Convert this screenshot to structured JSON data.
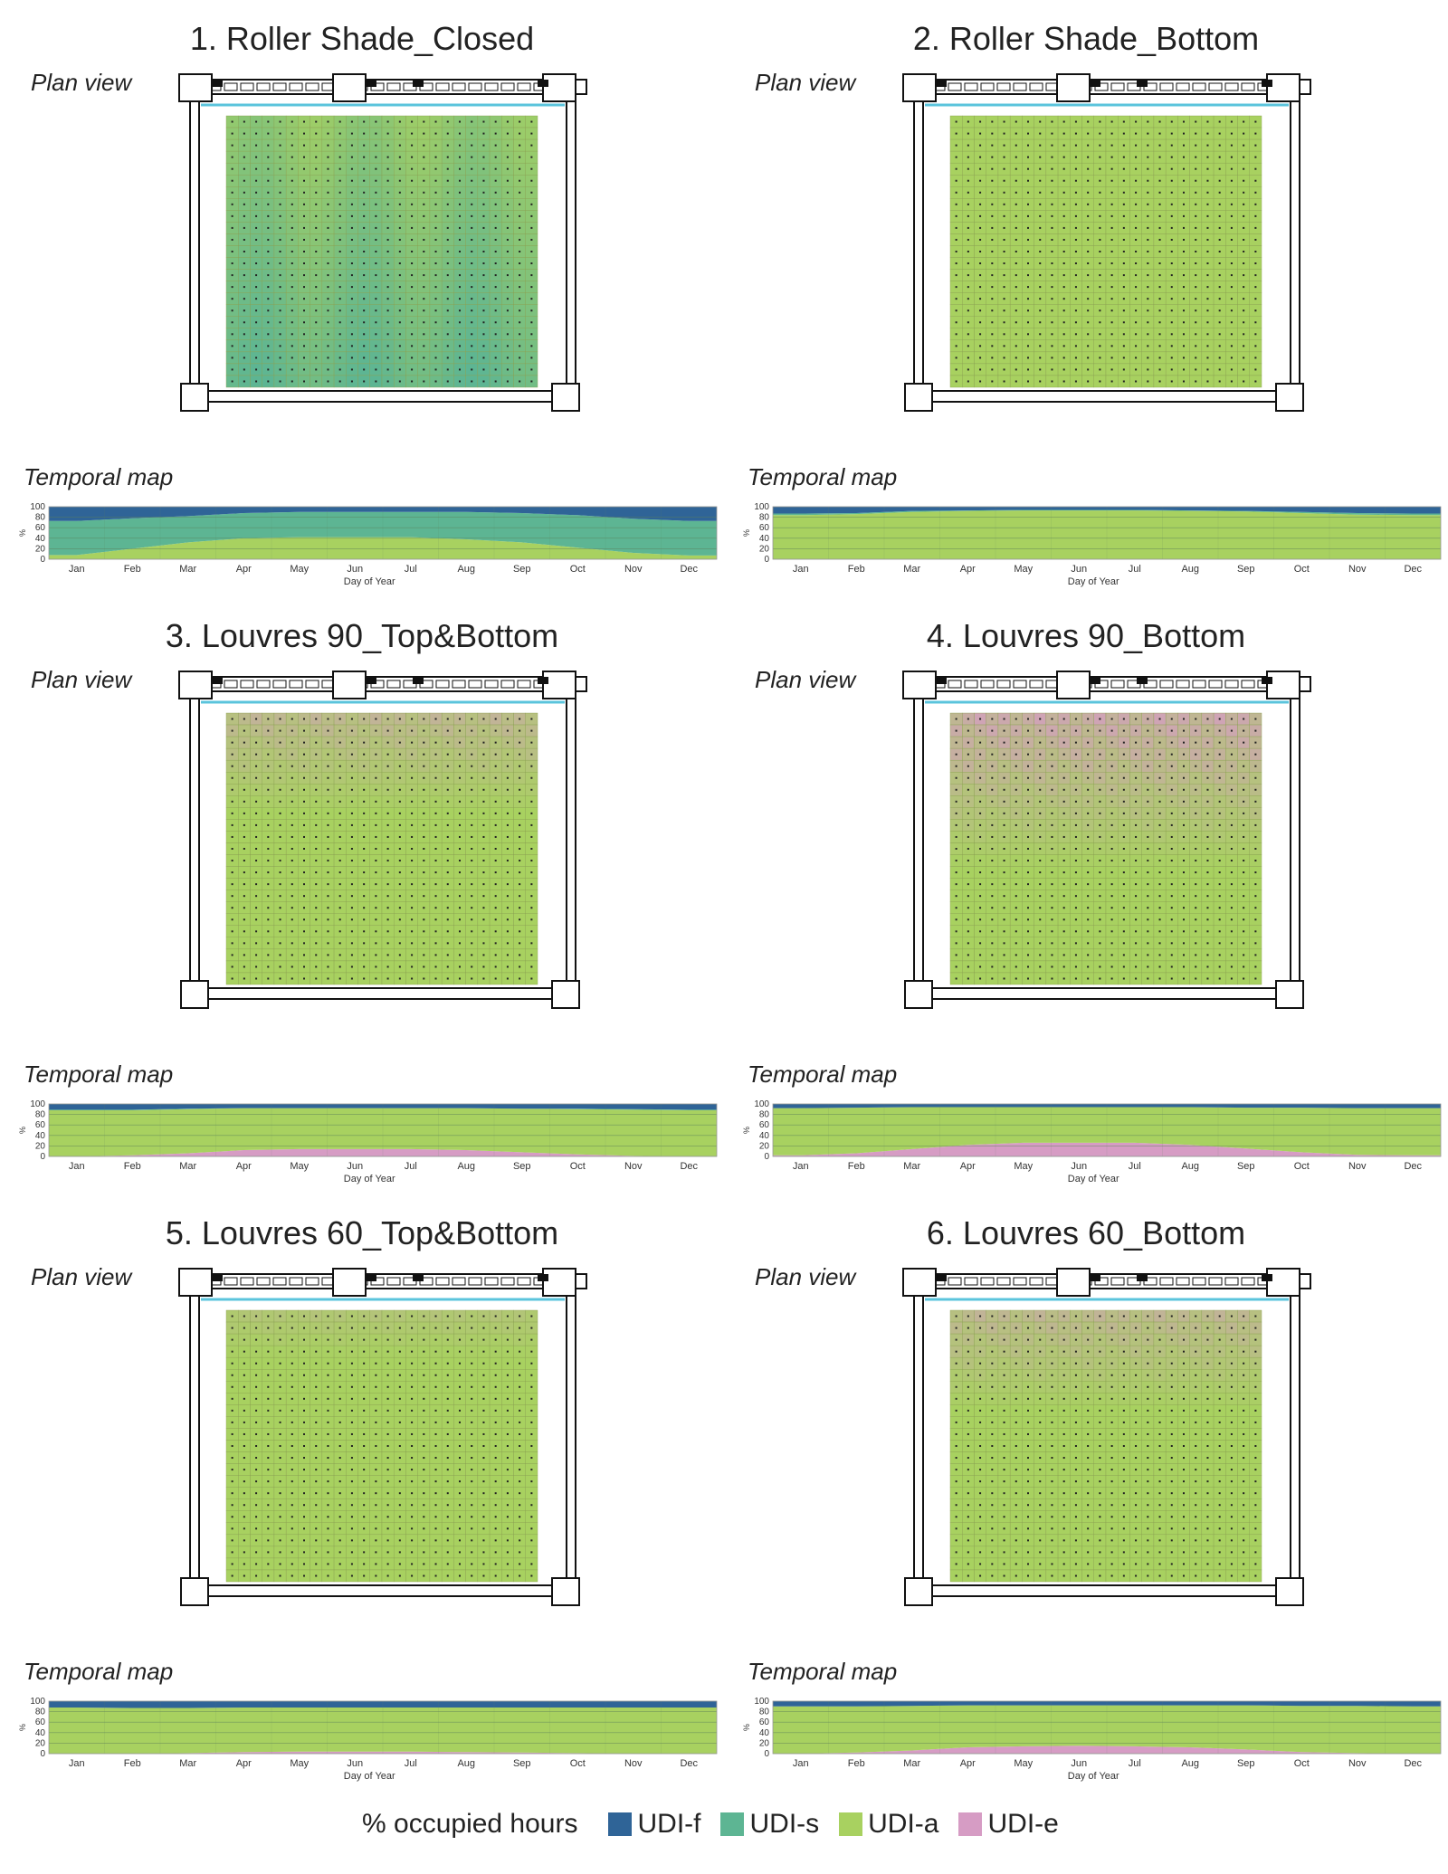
{
  "plan_label": "Plan view",
  "temporal_label": "Temporal map",
  "colors": {
    "udi_f": "#2f6497",
    "udi_s": "#5db593",
    "udi_a": "#a8d160",
    "udi_e": "#d69cc4",
    "glazing": "#5bc4dc"
  },
  "legend": {
    "title": "% occupied hours",
    "items": [
      {
        "label": "UDI-f",
        "color": "#2f6497"
      },
      {
        "label": "UDI-s",
        "color": "#5db593"
      },
      {
        "label": "UDI-a",
        "color": "#a8d160"
      },
      {
        "label": "UDI-e",
        "color": "#d69cc4"
      }
    ]
  },
  "chart_data": [
    {
      "type": "area",
      "title": "1. Roller Shade_Closed",
      "plan_view": "udi-s",
      "xlabel": "Day of Year",
      "ylabel": "%",
      "ylim": [
        0,
        100
      ],
      "yticks": [
        "100",
        "80",
        "60",
        "40",
        "20",
        "0"
      ],
      "categories": [
        "Jan",
        "Feb",
        "Mar",
        "Apr",
        "May",
        "Jun",
        "Jul",
        "Aug",
        "Sep",
        "Oct",
        "Nov",
        "Dec"
      ],
      "series": [
        {
          "name": "UDI-e",
          "values": [
            0,
            0,
            0,
            0,
            0,
            0,
            0,
            0,
            0,
            0,
            0,
            0
          ]
        },
        {
          "name": "UDI-a",
          "values": [
            8,
            20,
            32,
            40,
            42,
            42,
            42,
            38,
            32,
            22,
            12,
            7
          ]
        },
        {
          "name": "UDI-s",
          "values": [
            65,
            58,
            50,
            48,
            48,
            48,
            48,
            52,
            56,
            62,
            65,
            66
          ]
        },
        {
          "name": "UDI-f",
          "values": [
            27,
            22,
            18,
            12,
            10,
            10,
            10,
            10,
            12,
            16,
            23,
            27
          ]
        }
      ]
    },
    {
      "type": "area",
      "title": "2. Roller Shade_Bottom",
      "plan_view": "udi-a",
      "xlabel": "Day of Year",
      "ylabel": "%",
      "ylim": [
        0,
        100
      ],
      "yticks": [
        "100",
        "80",
        "60",
        "40",
        "20",
        "0"
      ],
      "categories": [
        "Jan",
        "Feb",
        "Mar",
        "Apr",
        "May",
        "Jun",
        "Jul",
        "Aug",
        "Sep",
        "Oct",
        "Nov",
        "Dec"
      ],
      "series": [
        {
          "name": "UDI-e",
          "values": [
            0,
            0,
            0,
            0,
            0,
            0,
            0,
            0,
            0,
            0,
            0,
            0
          ]
        },
        {
          "name": "UDI-a",
          "values": [
            84,
            86,
            90,
            92,
            93,
            93,
            93,
            92,
            91,
            88,
            85,
            84
          ]
        },
        {
          "name": "UDI-s",
          "values": [
            3,
            2,
            2,
            1,
            1,
            1,
            1,
            1,
            1,
            2,
            3,
            3
          ]
        },
        {
          "name": "UDI-f",
          "values": [
            13,
            12,
            8,
            7,
            6,
            6,
            6,
            7,
            8,
            10,
            12,
            13
          ]
        }
      ]
    },
    {
      "type": "area",
      "title": "3. Louvres 90_Top&Bottom",
      "plan_view": "udi-a-pink-top",
      "xlabel": "Day of Year",
      "ylabel": "%",
      "ylim": [
        0,
        100
      ],
      "yticks": [
        "100",
        "80",
        "60",
        "40",
        "20",
        "0"
      ],
      "categories": [
        "Jan",
        "Feb",
        "Mar",
        "Apr",
        "May",
        "Jun",
        "Jul",
        "Aug",
        "Sep",
        "Oct",
        "Nov",
        "Dec"
      ],
      "series": [
        {
          "name": "UDI-e",
          "values": [
            0,
            2,
            6,
            12,
            14,
            14,
            14,
            12,
            8,
            4,
            1,
            0
          ]
        },
        {
          "name": "UDI-a",
          "values": [
            88,
            86,
            84,
            80,
            78,
            78,
            78,
            80,
            83,
            86,
            88,
            88
          ]
        },
        {
          "name": "UDI-s",
          "values": [
            1,
            1,
            1,
            0,
            0,
            0,
            0,
            0,
            0,
            1,
            1,
            1
          ]
        },
        {
          "name": "UDI-f",
          "values": [
            11,
            11,
            9,
            8,
            8,
            8,
            8,
            8,
            9,
            9,
            10,
            11
          ]
        }
      ]
    },
    {
      "type": "area",
      "title": "4. Louvres 90_Bottom",
      "plan_view": "udi-a-pink-top-strong",
      "xlabel": "Day of Year",
      "ylabel": "%",
      "ylim": [
        0,
        100
      ],
      "yticks": [
        "100",
        "80",
        "60",
        "40",
        "20",
        "0"
      ],
      "categories": [
        "Jan",
        "Feb",
        "Mar",
        "Apr",
        "May",
        "Jun",
        "Jul",
        "Aug",
        "Sep",
        "Oct",
        "Nov",
        "Dec"
      ],
      "series": [
        {
          "name": "UDI-e",
          "values": [
            2,
            6,
            14,
            22,
            26,
            26,
            26,
            22,
            15,
            8,
            3,
            2
          ]
        },
        {
          "name": "UDI-a",
          "values": [
            90,
            87,
            80,
            72,
            68,
            68,
            68,
            72,
            78,
            85,
            89,
            90
          ]
        },
        {
          "name": "UDI-s",
          "values": [
            0,
            0,
            0,
            0,
            0,
            0,
            0,
            0,
            0,
            0,
            0,
            0
          ]
        },
        {
          "name": "UDI-f",
          "values": [
            8,
            7,
            6,
            6,
            6,
            6,
            6,
            6,
            7,
            7,
            8,
            8
          ]
        }
      ]
    },
    {
      "type": "area",
      "title": "5. Louvres 60_Top&Bottom",
      "plan_view": "udi-a-pink-faint",
      "xlabel": "Day of Year",
      "ylabel": "%",
      "ylim": [
        0,
        100
      ],
      "yticks": [
        "100",
        "80",
        "60",
        "40",
        "20",
        "0"
      ],
      "categories": [
        "Jan",
        "Feb",
        "Mar",
        "Apr",
        "May",
        "Jun",
        "Jul",
        "Aug",
        "Sep",
        "Oct",
        "Nov",
        "Dec"
      ],
      "series": [
        {
          "name": "UDI-e",
          "values": [
            0,
            0,
            1,
            3,
            4,
            4,
            4,
            3,
            2,
            1,
            0,
            0
          ]
        },
        {
          "name": "UDI-a",
          "values": [
            88,
            87,
            86,
            85,
            84,
            84,
            84,
            85,
            86,
            87,
            88,
            88
          ]
        },
        {
          "name": "UDI-s",
          "values": [
            0,
            0,
            0,
            0,
            0,
            0,
            0,
            0,
            0,
            0,
            0,
            0
          ]
        },
        {
          "name": "UDI-f",
          "values": [
            12,
            13,
            13,
            12,
            12,
            12,
            12,
            12,
            12,
            12,
            12,
            12
          ]
        }
      ]
    },
    {
      "type": "area",
      "title": "6. Louvres 60_Bottom",
      "plan_view": "udi-a-pink-top",
      "xlabel": "Day of Year",
      "ylabel": "%",
      "ylim": [
        0,
        100
      ],
      "yticks": [
        "100",
        "80",
        "60",
        "40",
        "20",
        "0"
      ],
      "categories": [
        "Jan",
        "Feb",
        "Mar",
        "Apr",
        "May",
        "Jun",
        "Jul",
        "Aug",
        "Sep",
        "Oct",
        "Nov",
        "Dec"
      ],
      "series": [
        {
          "name": "UDI-e",
          "values": [
            0,
            2,
            6,
            12,
            14,
            15,
            14,
            12,
            8,
            3,
            1,
            0
          ]
        },
        {
          "name": "UDI-a",
          "values": [
            90,
            88,
            85,
            80,
            78,
            77,
            78,
            80,
            84,
            88,
            90,
            90
          ]
        },
        {
          "name": "UDI-s",
          "values": [
            0,
            0,
            0,
            0,
            0,
            0,
            0,
            0,
            0,
            0,
            0,
            0
          ]
        },
        {
          "name": "UDI-f",
          "values": [
            10,
            10,
            9,
            8,
            8,
            8,
            8,
            8,
            8,
            9,
            9,
            10
          ]
        }
      ]
    }
  ]
}
